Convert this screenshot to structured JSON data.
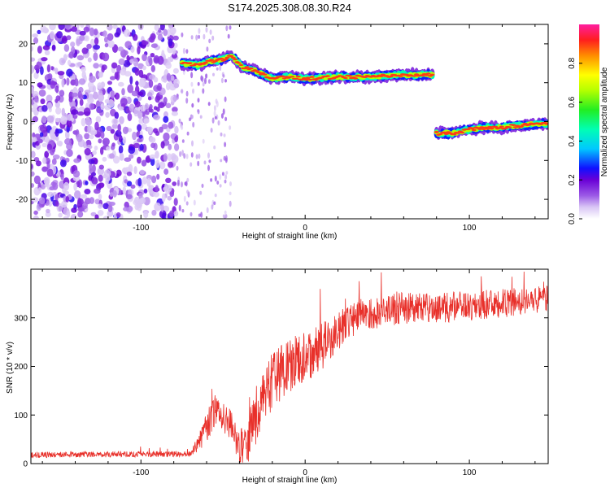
{
  "figure_title": "S174.2025.308.08.30.R24",
  "chart_data": [
    {
      "type": "heatmap",
      "title": "S174.2025.308.08.30.R24",
      "xlabel": "Height of straight line (km)",
      "ylabel": "Frequency (Hz)",
      "xlim": [
        -167,
        148
      ],
      "ylim": [
        -25,
        25
      ],
      "xticks": [
        -100,
        0,
        100
      ],
      "yticks": [
        -20,
        -10,
        0,
        10,
        20
      ],
      "colorbar": {
        "label": "Normalized spectral amplitude",
        "range": [
          0.0,
          1.0
        ],
        "ticks": [
          0.0,
          0.2,
          0.4,
          0.6,
          0.8
        ]
      },
      "noise_region": {
        "x_range": [
          -167,
          -78
        ],
        "freq_range": [
          -25,
          25
        ],
        "amplitude_range": [
          0.05,
          0.25
        ]
      },
      "sparse_region": {
        "x_range": [
          -78,
          -45
        ],
        "freq_range": [
          -25,
          25
        ],
        "amplitude_range": [
          0.05,
          0.15
        ]
      },
      "ridges": [
        {
          "name": "upper ridge",
          "points": [
            [
              -75,
              15
            ],
            [
              -65,
              14.5
            ],
            [
              -58,
              15.5
            ],
            [
              -50,
              16
            ],
            [
              -45,
              17
            ],
            [
              -38,
              14
            ],
            [
              -30,
              13
            ],
            [
              -20,
              11
            ],
            [
              -10,
              11.5
            ],
            [
              0,
              11
            ],
            [
              20,
              11.5
            ],
            [
              40,
              11.5
            ],
            [
              60,
              12
            ],
            [
              78,
              12
            ]
          ],
          "peak_amplitude": 0.9
        },
        {
          "name": "lower ridge",
          "points": [
            [
              80,
              -3
            ],
            [
              90,
              -3
            ],
            [
              100,
              -2
            ],
            [
              110,
              -1.5
            ],
            [
              120,
              -1.5
            ],
            [
              130,
              -1
            ],
            [
              148,
              -0.5
            ]
          ],
          "peak_amplitude": 0.9
        }
      ]
    },
    {
      "type": "line",
      "xlabel": "Height of straight line (km)",
      "ylabel": "SNR (10 * v/v)",
      "xlim": [
        -167,
        148
      ],
      "ylim": [
        0,
        400
      ],
      "xticks": [
        -100,
        0,
        100
      ],
      "yticks": [
        0,
        100,
        200,
        300
      ],
      "color": "#e8302a",
      "trend": {
        "x": [
          -167,
          -70,
          -65,
          -55,
          -45,
          -40,
          -35,
          -30,
          -25,
          -20,
          -10,
          0,
          10,
          20,
          30,
          40,
          60,
          80,
          100,
          120,
          148
        ],
        "y": [
          18,
          20,
          40,
          110,
          80,
          30,
          50,
          100,
          140,
          170,
          200,
          220,
          240,
          270,
          300,
          310,
          320,
          320,
          325,
          330,
          340
        ]
      },
      "noise_amplitude": {
        "x": [
          -167,
          -70,
          -60,
          -45,
          -30,
          0,
          30,
          100,
          148
        ],
        "y": [
          6,
          6,
          35,
          30,
          60,
          55,
          35,
          30,
          30
        ]
      },
      "max_value": 395
    }
  ]
}
